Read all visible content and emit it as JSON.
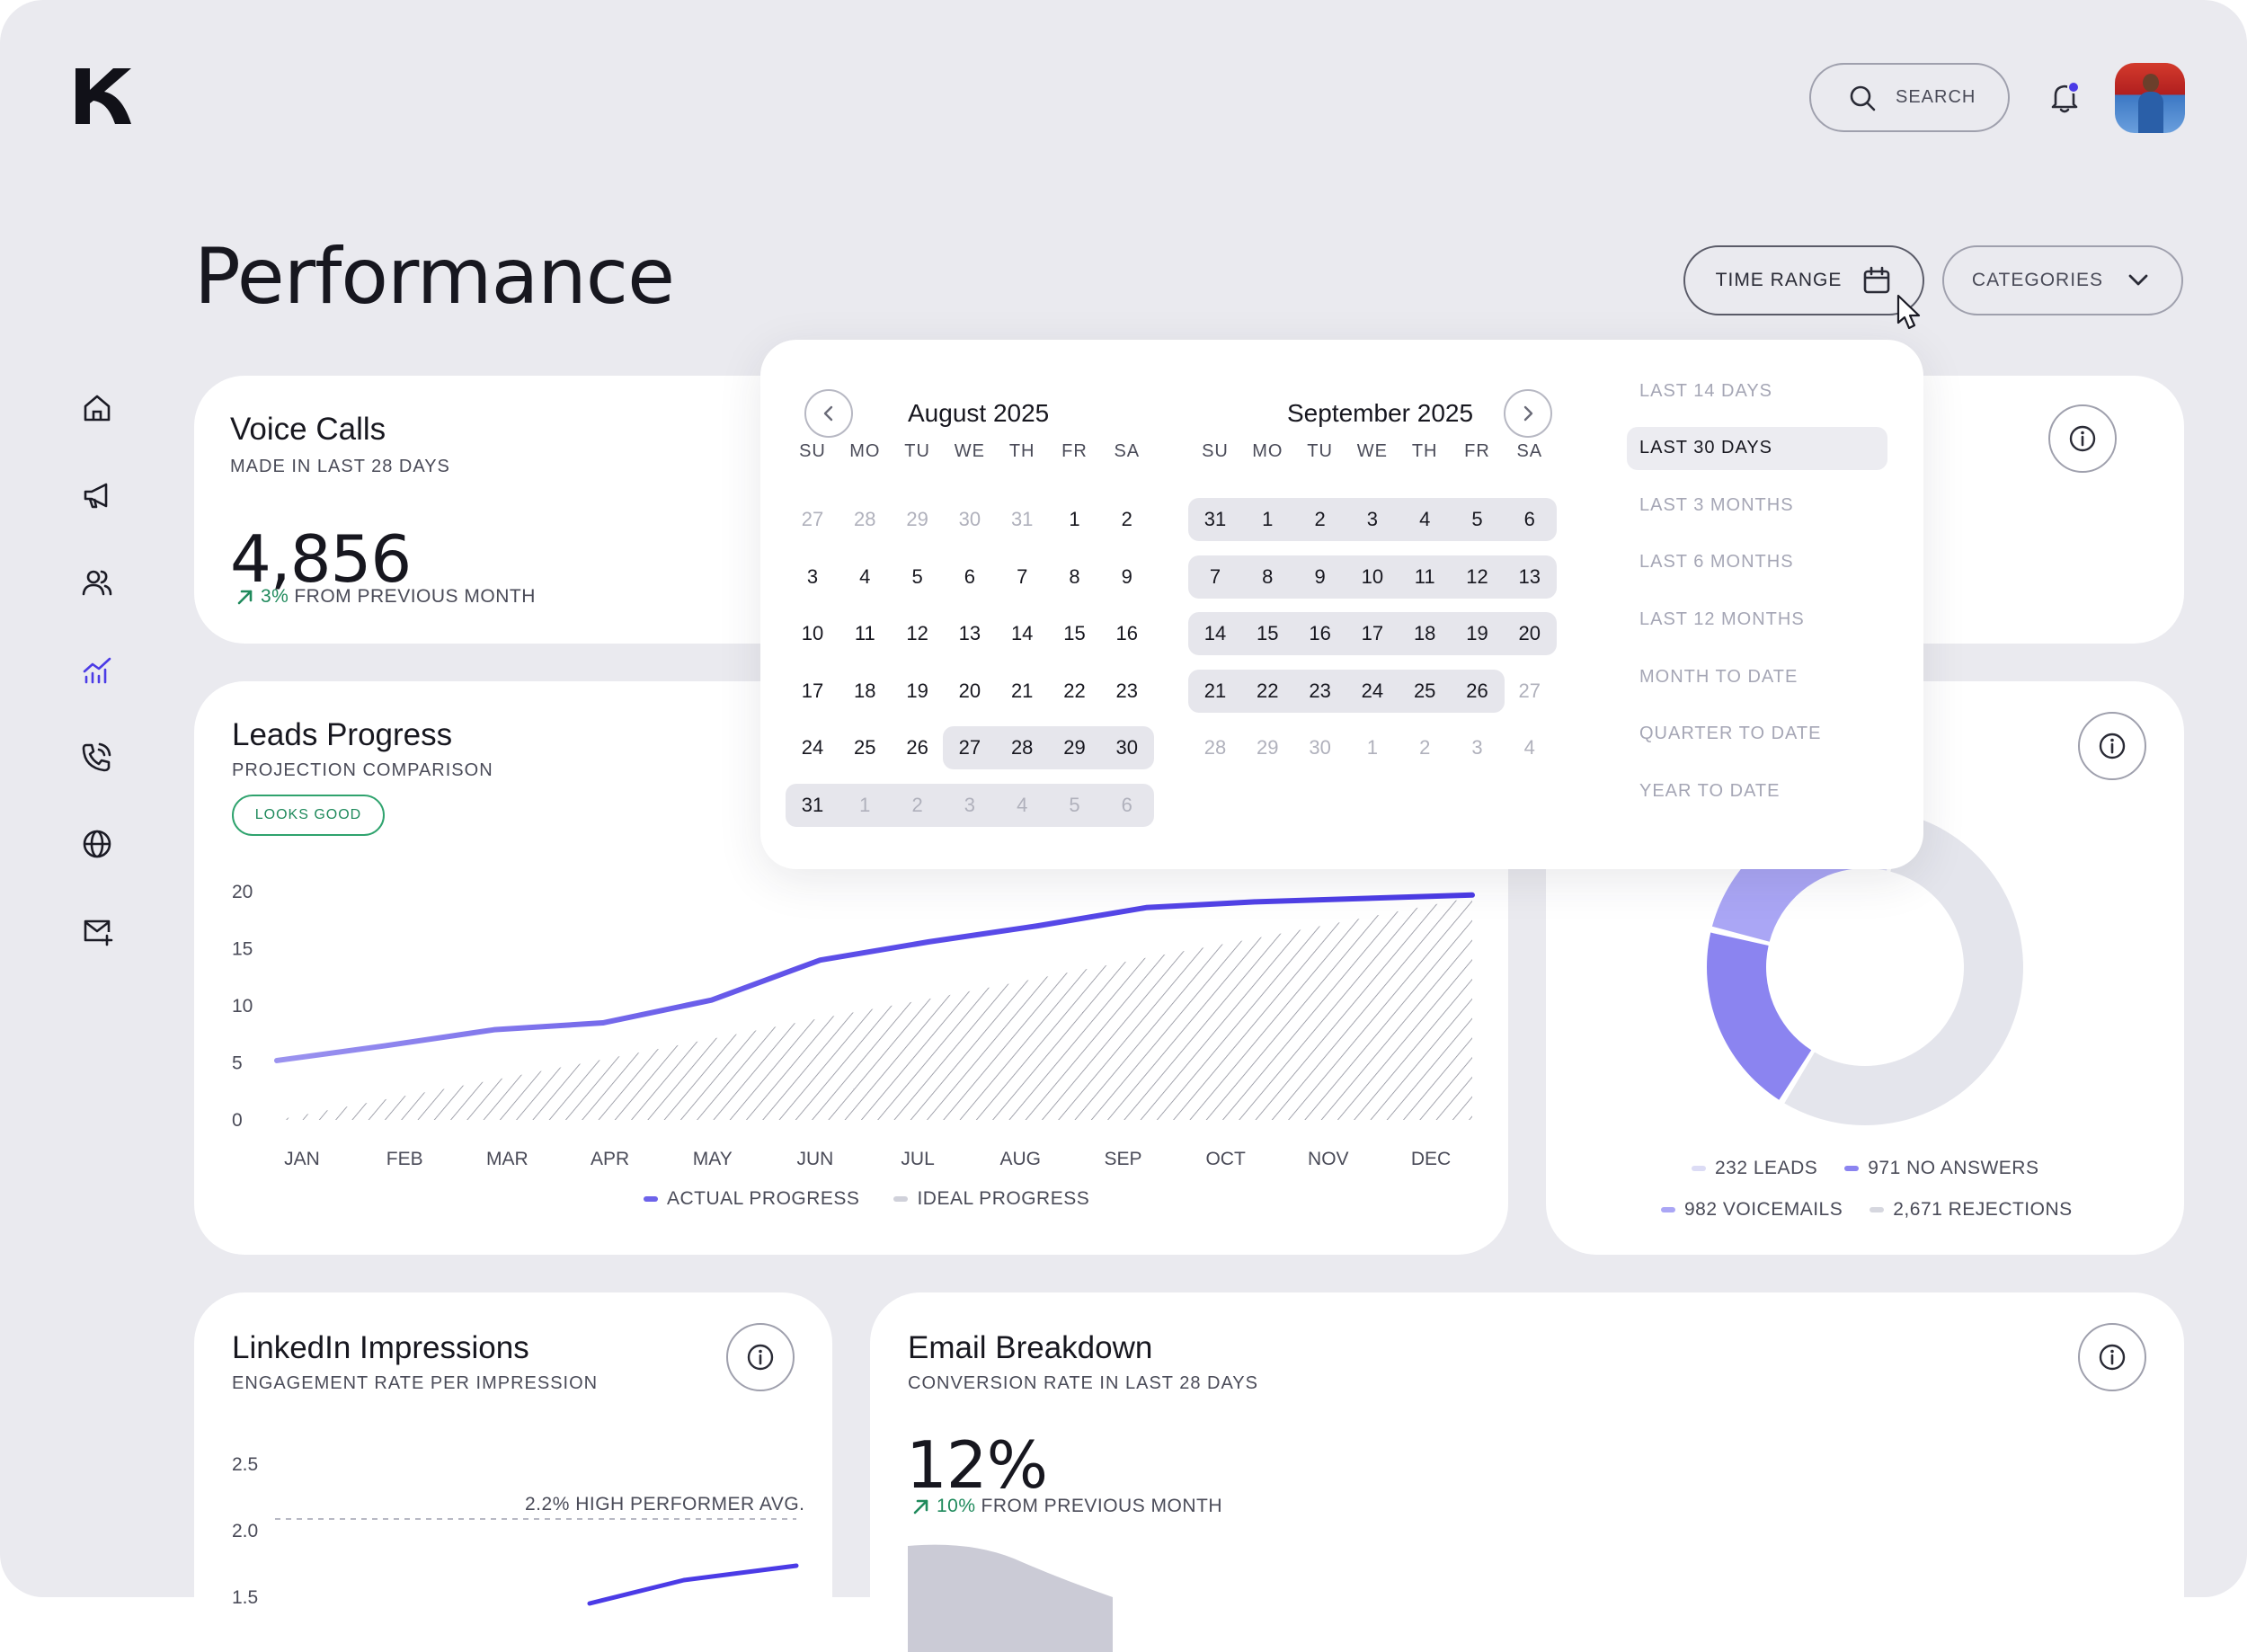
{
  "header": {
    "search_label": "SEARCH",
    "page_title": "Performance",
    "time_range_label": "TIME RANGE",
    "categories_label": "CATEGORIES"
  },
  "colors": {
    "background": "#eaeaef",
    "accent": "#4b3be6",
    "accent_light": "#9b93ef",
    "positive": "#1f8a5c"
  },
  "sidebar": {
    "items": [
      {
        "icon": "home-icon"
      },
      {
        "icon": "megaphone-icon"
      },
      {
        "icon": "users-icon"
      },
      {
        "icon": "analytics-icon",
        "active": true
      },
      {
        "icon": "phone-call-icon"
      },
      {
        "icon": "globe-icon"
      },
      {
        "icon": "mail-add-icon"
      }
    ]
  },
  "voice_calls": {
    "title": "Voice Calls",
    "subtitle": "MADE IN LAST 28 DAYS",
    "value": "4,856",
    "change": "3%",
    "change_label": "FROM PREVIOUS MONTH"
  },
  "leads_progress": {
    "title": "Leads Progress",
    "subtitle": "PROJECTION COMPARISON",
    "badge": "LOOKS GOOD"
  },
  "calls_breakdown": {
    "legend": [
      {
        "label": "232 LEADS",
        "color": "#dcdcf5"
      },
      {
        "label": "971 NO ANSWERS",
        "color": "#8b84f0"
      },
      {
        "label": "982 VOICEMAILS",
        "color": "#aaa6f5"
      },
      {
        "label": "2,671 REJECTIONS",
        "color": "#d6d7df"
      }
    ]
  },
  "linkedin": {
    "title": "LinkedIn Impressions",
    "subtitle": "ENGAGEMENT RATE PER IMPRESSION",
    "benchmark_label": "2.2% HIGH PERFORMER AVG.",
    "y_ticks": [
      "2.5",
      "2.0",
      "1.5"
    ]
  },
  "email": {
    "title": "Email Breakdown",
    "subtitle": "CONVERSION RATE IN LAST 28 DAYS",
    "value": "12%",
    "change": "10%",
    "change_label": "FROM PREVIOUS MONTH"
  },
  "calendar": {
    "left_month": "August 2025",
    "right_month": "September 2025",
    "weekdays": [
      "SU",
      "MO",
      "TU",
      "WE",
      "TH",
      "FR",
      "SA"
    ],
    "left_weeks": [
      [
        "27",
        "28",
        "29",
        "30",
        "31",
        "1",
        "2"
      ],
      [
        "3",
        "4",
        "5",
        "6",
        "7",
        "8",
        "9"
      ],
      [
        "10",
        "11",
        "12",
        "13",
        "14",
        "15",
        "16"
      ],
      [
        "17",
        "18",
        "19",
        "20",
        "21",
        "22",
        "23"
      ],
      [
        "24",
        "25",
        "26",
        "27",
        "28",
        "29",
        "30"
      ],
      [
        "31",
        "1",
        "2",
        "3",
        "4",
        "5",
        "6"
      ]
    ],
    "right_weeks": [
      [
        "31",
        "1",
        "2",
        "3",
        "4",
        "5",
        "6"
      ],
      [
        "7",
        "8",
        "9",
        "10",
        "11",
        "12",
        "13"
      ],
      [
        "14",
        "15",
        "16",
        "17",
        "18",
        "19",
        "20"
      ],
      [
        "21",
        "22",
        "23",
        "24",
        "25",
        "26",
        "27"
      ],
      [
        "28",
        "29",
        "30",
        "1",
        "2",
        "3",
        "4"
      ]
    ],
    "presets": [
      "LAST 14 DAYS",
      "LAST 30 DAYS",
      "LAST 3 MONTHS",
      "LAST 6 MONTHS",
      "LAST 12 MONTHS",
      "MONTH TO DATE",
      "QUARTER TO DATE",
      "YEAR TO DATE"
    ],
    "active_preset": "LAST 30 DAYS"
  },
  "chart_data": [
    {
      "type": "line",
      "title": "",
      "categories": [
        "JAN",
        "FEB",
        "MAR",
        "APR",
        "MAY",
        "JUN",
        "JUL",
        "AUG",
        "SEP",
        "OCT",
        "NOV",
        "DEC"
      ],
      "y_ticks": [
        "0",
        "5",
        "10",
        "15",
        "20"
      ],
      "ylim": [
        0,
        20
      ],
      "series": [
        {
          "name": "ACTUAL PROGRESS",
          "color": "#4b3be6",
          "values": [
            5.2,
            6.5,
            7.9,
            8.5,
            10.5,
            14.0,
            15.6,
            17.0,
            18.6,
            19.1,
            19.4,
            19.7
          ]
        },
        {
          "name": "IDEAL PROGRESS",
          "color": "#d0d1da",
          "values": [
            0,
            1.8,
            3.5,
            5.3,
            7.1,
            8.9,
            10.6,
            12.4,
            14.2,
            15.9,
            17.7,
            19.5
          ]
        }
      ],
      "grid": false,
      "legend": "bottom-center"
    },
    {
      "type": "pie",
      "labels": [
        "LEADS",
        "NO ANSWERS",
        "VOICEMAILS",
        "REJECTIONS"
      ],
      "values": [
        232,
        971,
        982,
        2671
      ],
      "colors": [
        "#dcdcf5",
        "#8b84f0",
        "#aaa6f5",
        "#e4e5ec"
      ]
    }
  ]
}
